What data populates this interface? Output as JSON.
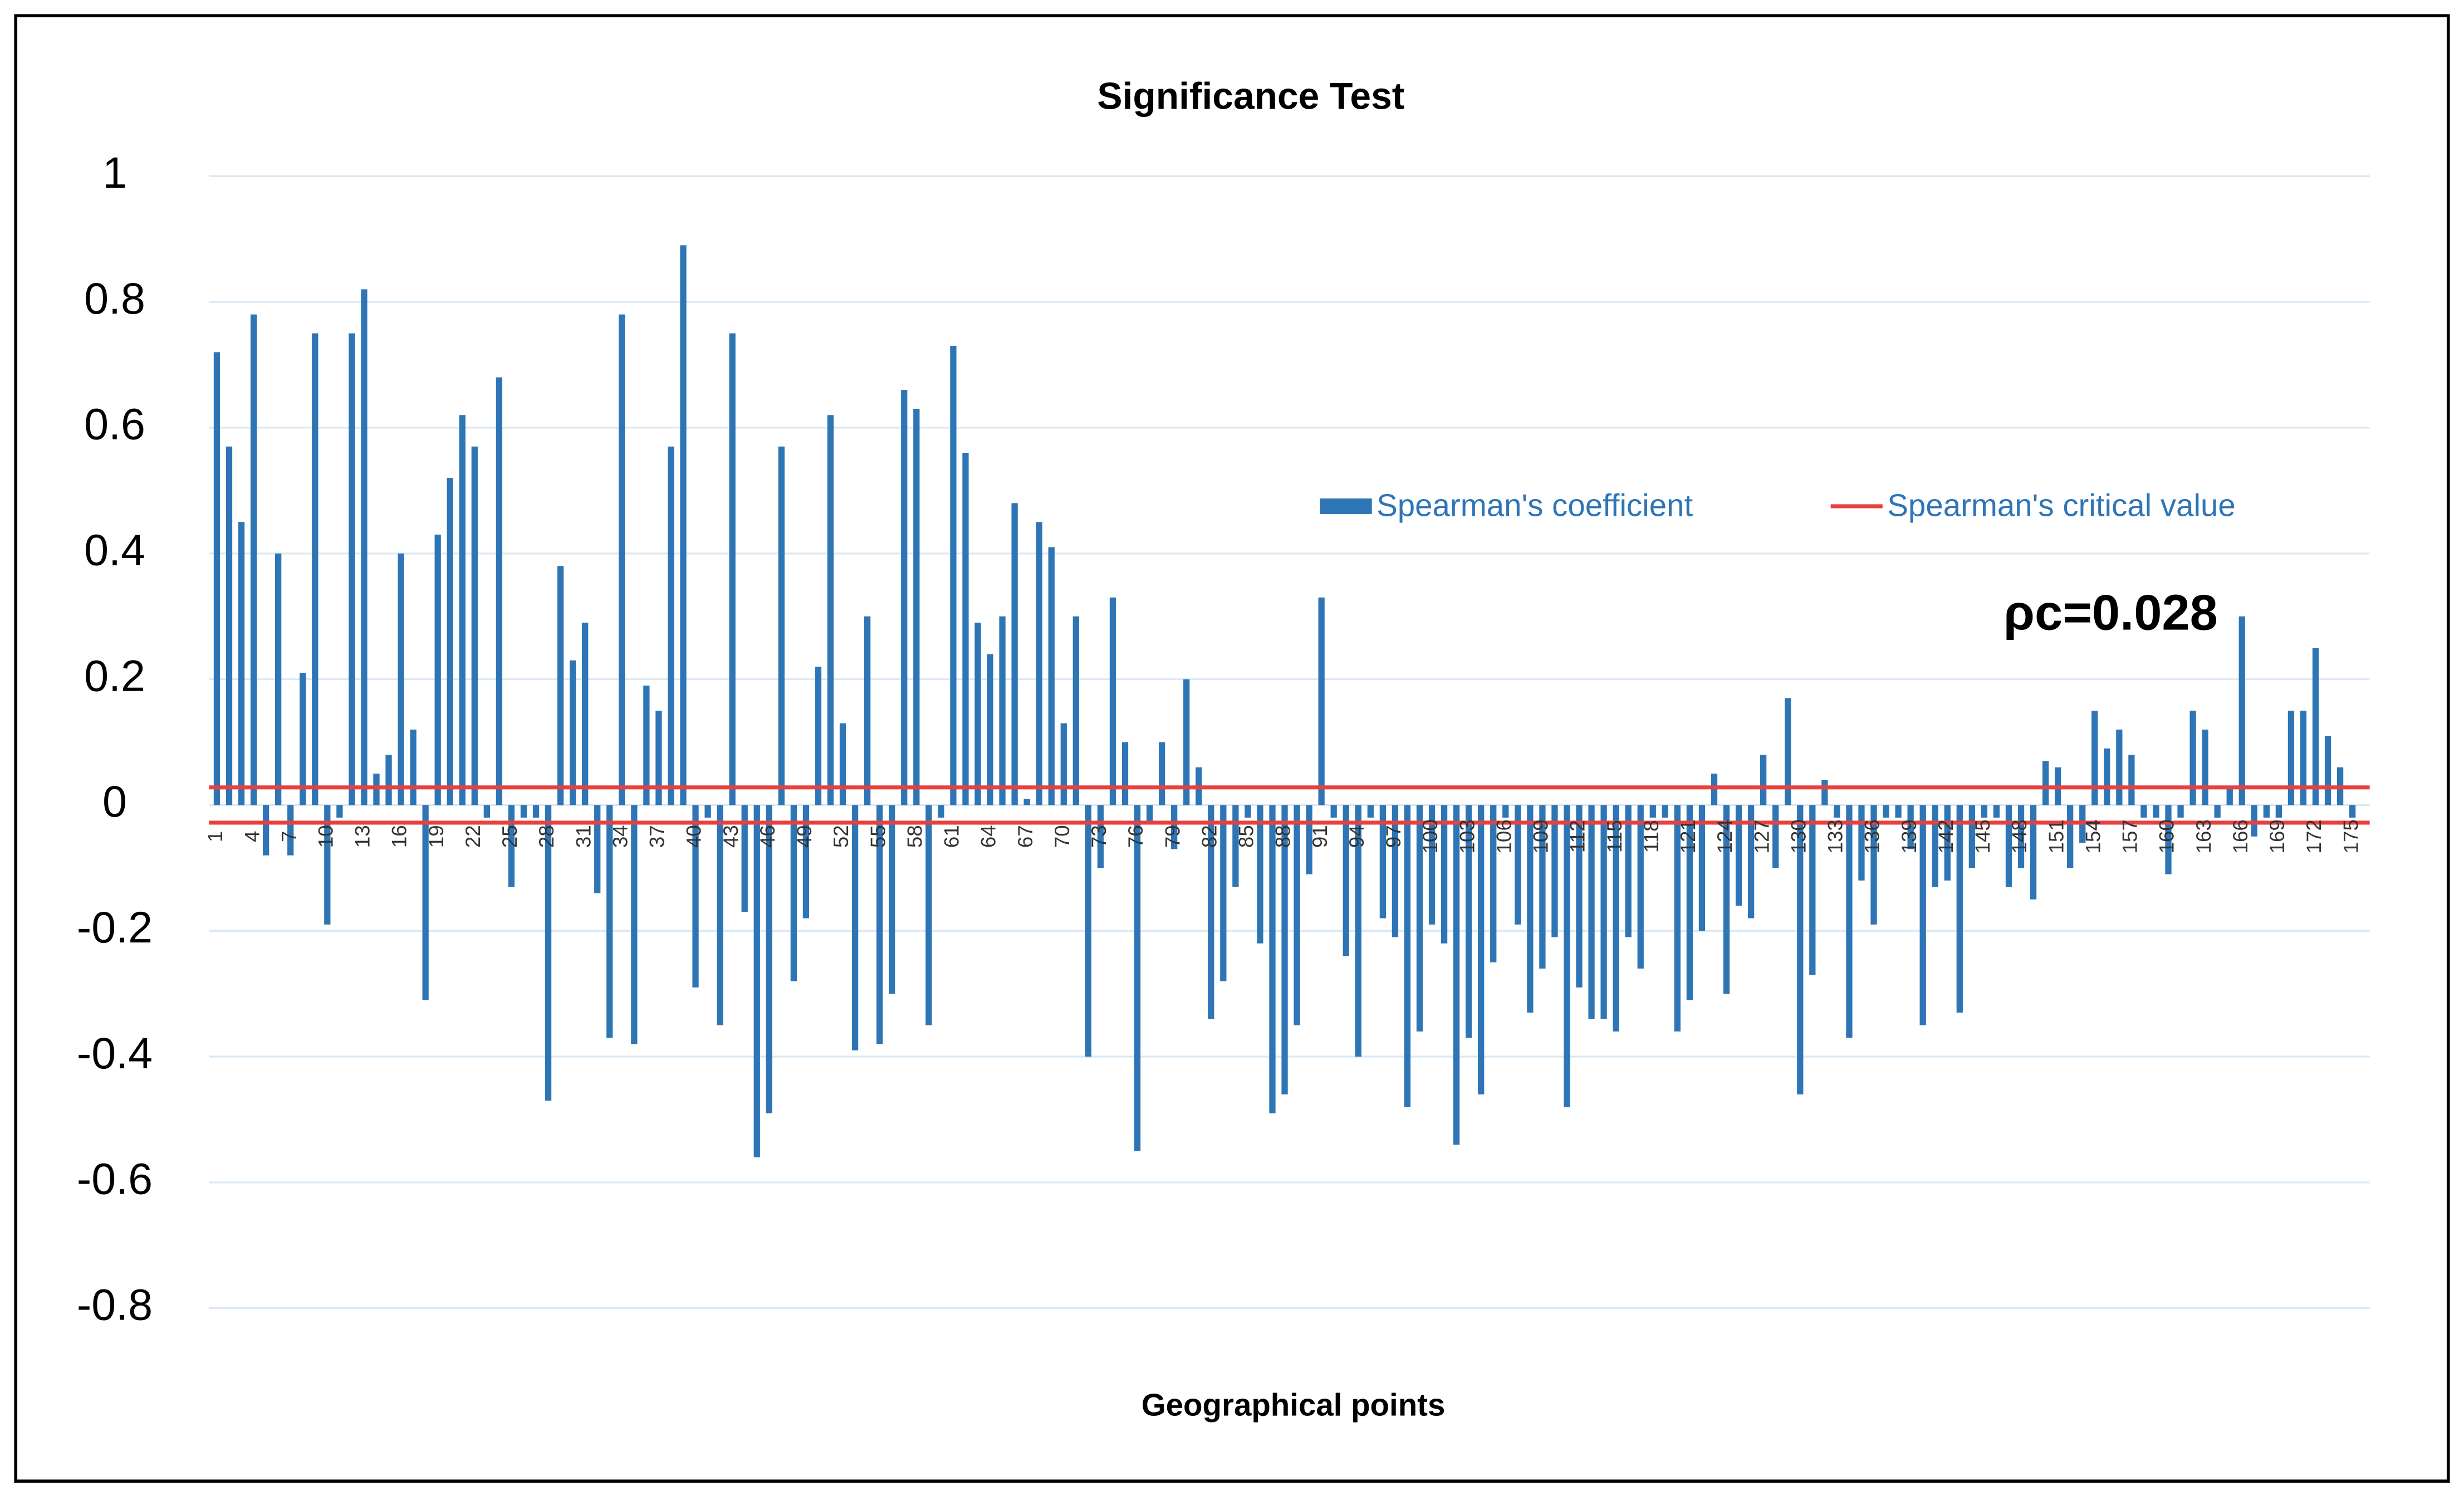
{
  "chart_data": {
    "type": "bar",
    "title": "Significance Test",
    "x_label": "Geographical points",
    "categories": [
      1,
      null,
      null,
      4,
      null,
      null,
      7,
      null,
      null,
      10,
      null,
      null,
      13,
      null,
      null,
      16,
      null,
      null,
      19,
      null,
      null,
      22,
      null,
      null,
      25,
      null,
      null,
      28,
      null,
      null,
      31,
      null,
      null,
      34,
      null,
      null,
      37,
      null,
      null,
      40,
      null,
      null,
      43,
      null,
      null,
      46,
      null,
      null,
      49,
      null,
      null,
      52,
      null,
      null,
      55,
      null,
      null,
      58,
      null,
      null,
      61,
      null,
      null,
      64,
      null,
      null,
      67,
      null,
      null,
      70,
      null,
      null,
      73,
      null,
      null,
      76,
      null,
      null,
      79,
      null,
      null,
      82,
      null,
      null,
      85,
      null,
      null,
      88,
      null,
      null,
      91,
      null,
      null,
      94,
      null,
      null,
      97,
      null,
      null,
      100,
      null,
      null,
      103,
      null,
      null,
      106,
      null,
      null,
      109,
      null,
      null,
      112,
      null,
      null,
      115,
      null,
      null,
      118,
      null,
      null,
      121,
      null,
      null,
      124,
      null,
      null,
      127,
      null,
      null,
      130,
      null,
      null,
      133,
      null,
      null,
      136,
      null,
      null,
      139,
      null,
      null,
      142,
      null,
      null,
      145,
      null,
      null,
      148,
      null,
      null,
      151,
      null,
      null,
      154,
      null,
      null,
      157,
      null,
      null,
      160,
      null,
      null,
      163,
      null,
      null,
      166,
      null,
      null,
      169,
      null,
      null,
      172,
      null,
      null,
      175
    ],
    "series": [
      {
        "name": "Spearman's coefficient",
        "color": "#2e75b6",
        "values": [
          0.72,
          0.57,
          0.45,
          0.78,
          -0.08,
          0.4,
          -0.08,
          0.21,
          0.75,
          -0.19,
          -0.02,
          0.75,
          0.82,
          0.05,
          0.08,
          0.4,
          0.12,
          -0.31,
          0.43,
          0.52,
          0.62,
          0.57,
          -0.02,
          0.68,
          -0.13,
          -0.02,
          -0.02,
          -0.47,
          0.38,
          0.23,
          0.29,
          -0.14,
          -0.37,
          0.78,
          -0.38,
          0.19,
          0.15,
          0.57,
          0.89,
          -0.29,
          -0.02,
          -0.35,
          0.75,
          -0.17,
          -0.56,
          -0.49,
          0.57,
          -0.28,
          -0.18,
          0.22,
          0.62,
          0.13,
          -0.39,
          0.3,
          -0.38,
          -0.3,
          0.66,
          0.63,
          -0.35,
          -0.02,
          0.73,
          0.56,
          0.29,
          0.24,
          0.3,
          0.48,
          0.01,
          0.45,
          0.41,
          0.13,
          0.3,
          -0.4,
          -0.1,
          0.33,
          0.1,
          -0.55,
          -0.03,
          0.1,
          -0.07,
          0.2,
          0.06,
          -0.34,
          -0.28,
          -0.13,
          -0.02,
          -0.22,
          -0.49,
          -0.46,
          -0.35,
          -0.11,
          0.33,
          -0.02,
          -0.24,
          -0.4,
          -0.02,
          -0.18,
          -0.21,
          -0.48,
          -0.36,
          -0.19,
          -0.22,
          -0.54,
          -0.37,
          -0.46,
          -0.25,
          -0.02,
          -0.19,
          -0.33,
          -0.26,
          -0.21,
          -0.48,
          -0.29,
          -0.34,
          -0.34,
          -0.36,
          -0.21,
          -0.26,
          -0.02,
          -0.02,
          -0.36,
          -0.31,
          -0.2,
          0.05,
          -0.3,
          -0.16,
          -0.18,
          0.08,
          -0.1,
          0.17,
          -0.46,
          -0.27,
          0.04,
          -0.02,
          -0.37,
          -0.12,
          -0.19,
          -0.02,
          -0.02,
          -0.07,
          -0.35,
          -0.13,
          -0.12,
          -0.33,
          -0.1,
          -0.02,
          -0.02,
          -0.13,
          -0.1,
          -0.15,
          0.07,
          0.06,
          -0.1,
          -0.06,
          0.15,
          0.09,
          0.12,
          0.08,
          -0.02,
          -0.02,
          -0.11,
          -0.02,
          0.15,
          0.12,
          -0.02,
          0.03,
          0.3,
          -0.05,
          -0.02,
          -0.02,
          0.15,
          0.15,
          0.25,
          0.11,
          0.06,
          -0.02
        ]
      }
    ],
    "critical_lines": {
      "name": "Spearman's critical value",
      "color": "#e8403f",
      "values": [
        0.028,
        -0.028
      ]
    },
    "annotation": "ρc=0.028",
    "ylim": [
      -0.8,
      1
    ],
    "yticks": [
      1,
      0.8,
      0.6,
      0.4,
      0.2,
      0,
      -0.2,
      -0.4,
      -0.6,
      -0.8
    ],
    "grid": true
  }
}
